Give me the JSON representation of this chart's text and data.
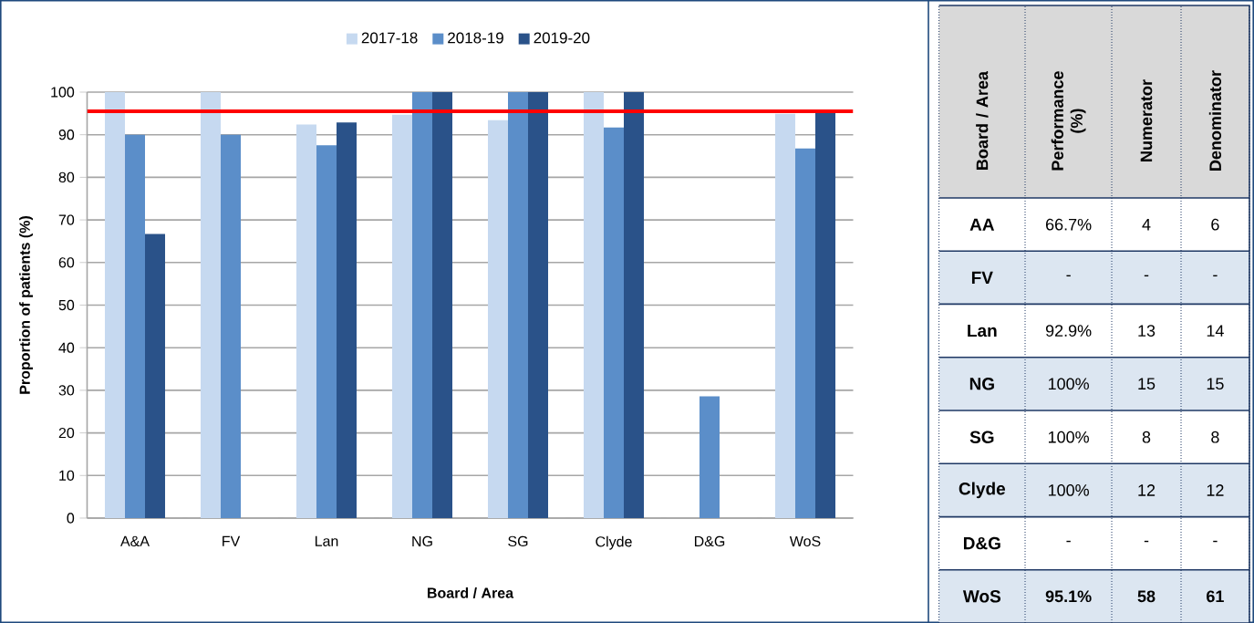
{
  "chart_data": [
    {
      "type": "bar",
      "xlabel": "Board / Area",
      "ylabel": "Proportion of patients (%)",
      "categories": [
        "A&A",
        "FV",
        "Lan",
        "NG",
        "SG",
        "Clyde",
        "D&G",
        "WoS"
      ],
      "series": [
        {
          "name": "2017-18",
          "color": "#c6d9f0",
          "values": [
            100,
            100,
            92.4,
            94.7,
            93.4,
            100,
            null,
            94.9
          ]
        },
        {
          "name": "2018-19",
          "color": "#5b8ec9",
          "values": [
            90,
            90,
            87.5,
            100,
            100,
            91.7,
            28.6,
            86.8
          ]
        },
        {
          "name": "2019-20",
          "color": "#2a5289",
          "values": [
            66.7,
            null,
            92.9,
            100,
            100,
            100,
            null,
            95.1
          ]
        }
      ],
      "ylim": [
        0,
        100
      ],
      "yticks": [
        0,
        10,
        20,
        30,
        40,
        50,
        60,
        70,
        80,
        90,
        100
      ],
      "grid": "y",
      "legend": "top",
      "ref_lines": [
        {
          "axis": "y",
          "value": 95.5,
          "color": "#ff0000"
        }
      ]
    },
    {
      "type": "other",
      "categories": [
        "Board / Area",
        "Performance (%)",
        "Numerator",
        "Denominator"
      ],
      "y_categories": [
        "AA",
        "FV",
        "Lan",
        "NG",
        "SG",
        "Clyde",
        "D&G",
        "WoS"
      ],
      "cell_labels": [
        [
          "66.7%",
          "4",
          "6"
        ],
        [
          "-",
          "-",
          "-"
        ],
        [
          "92.9%",
          "13",
          "14"
        ],
        [
          "100%",
          "15",
          "15"
        ],
        [
          "100%",
          "8",
          "8"
        ],
        [
          "100%",
          "12",
          "12"
        ],
        [
          "-",
          "-",
          "-"
        ],
        [
          "95.1%",
          "58",
          "61"
        ]
      ]
    }
  ]
}
